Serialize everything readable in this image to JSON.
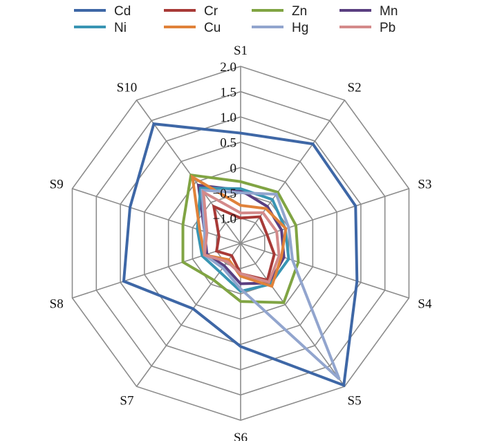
{
  "chart_data": {
    "type": "radar",
    "categories": [
      "S1",
      "S2",
      "S3",
      "S4",
      "S5",
      "S6",
      "S7",
      "S8",
      "S9",
      "S10"
    ],
    "ticks": [
      "−1.0",
      "−0.5",
      "0",
      "0.5",
      "1.0",
      "1.5",
      "2.0"
    ],
    "rlim": [
      -1.5,
      2.0
    ],
    "grid": true,
    "legend_position": "top",
    "series": [
      {
        "name": "Cd",
        "color": "#3E67A6",
        "values": [
          0.68,
          0.93,
          0.89,
          0.92,
          1.97,
          0.54,
          0.1,
          0.93,
          0.8,
          1.42
        ]
      },
      {
        "name": "Cr",
        "color": "#A83A37",
        "values": [
          -1.0,
          -0.85,
          -0.95,
          -0.8,
          -0.6,
          -0.9,
          -1.2,
          -1.0,
          -1.05,
          -0.6
        ]
      },
      {
        "name": "Zn",
        "color": "#80A443",
        "values": [
          -0.28,
          -0.25,
          -0.35,
          -0.3,
          -0.05,
          -0.35,
          -0.6,
          -0.3,
          -0.3,
          0.17
        ]
      },
      {
        "name": "Mn",
        "color": "#5A3F80",
        "values": [
          -0.45,
          -0.6,
          -0.65,
          -0.6,
          -0.53,
          -0.7,
          -0.95,
          -0.8,
          -0.75,
          -0.08
        ]
      },
      {
        "name": "Ni",
        "color": "#3995B3",
        "values": [
          -0.42,
          -0.43,
          -0.57,
          -0.5,
          -0.5,
          -0.55,
          -0.8,
          -0.7,
          -0.6,
          -0.15
        ]
      },
      {
        "name": "Cu",
        "color": "#E0823A",
        "values": [
          -0.75,
          -0.65,
          -0.56,
          -0.65,
          -0.45,
          -0.85,
          -1.1,
          -0.75,
          -0.65,
          0.12
        ]
      },
      {
        "name": "Hg",
        "color": "#92A5CE",
        "values": [
          -0.5,
          -0.3,
          -0.5,
          -0.42,
          1.82,
          -0.6,
          -0.9,
          -0.75,
          -0.75,
          -0.2
        ]
      },
      {
        "name": "Pb",
        "color": "#D48A8A",
        "values": [
          -0.9,
          -0.75,
          -0.75,
          -0.7,
          -0.55,
          -0.9,
          -1.05,
          -0.75,
          -0.8,
          -0.25
        ]
      }
    ]
  }
}
